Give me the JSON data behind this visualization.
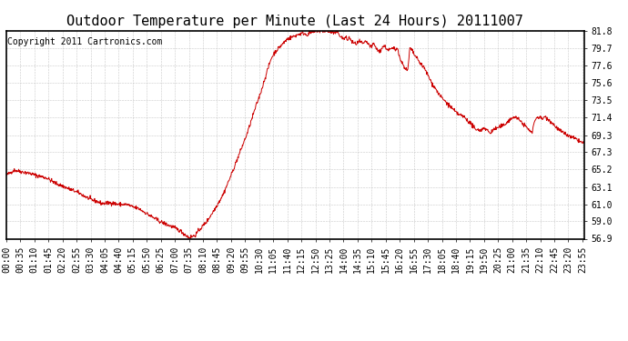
{
  "title": "Outdoor Temperature per Minute (Last 24 Hours) 20111007",
  "copyright_text": "Copyright 2011 Cartronics.com",
  "line_color": "#cc0000",
  "background_color": "#ffffff",
  "plot_bg_color": "#ffffff",
  "grid_color": "#bbbbbb",
  "ylim": [
    56.9,
    81.8
  ],
  "yticks": [
    56.9,
    59.0,
    61.0,
    63.1,
    65.2,
    67.3,
    69.3,
    71.4,
    73.5,
    75.6,
    77.6,
    79.7,
    81.8
  ],
  "xtick_labels": [
    "00:00",
    "00:35",
    "01:10",
    "01:45",
    "02:20",
    "02:55",
    "03:30",
    "04:05",
    "04:40",
    "05:15",
    "05:50",
    "06:25",
    "07:00",
    "07:35",
    "08:10",
    "08:45",
    "09:20",
    "09:55",
    "10:30",
    "11:05",
    "11:40",
    "12:15",
    "12:50",
    "13:25",
    "14:00",
    "14:35",
    "15:10",
    "15:45",
    "16:20",
    "16:55",
    "17:30",
    "18:05",
    "18:40",
    "19:15",
    "19:50",
    "20:25",
    "21:00",
    "21:35",
    "22:10",
    "22:45",
    "23:20",
    "23:55"
  ],
  "title_fontsize": 11,
  "tick_fontsize": 7,
  "copyright_fontsize": 7,
  "linewidth": 0.7
}
